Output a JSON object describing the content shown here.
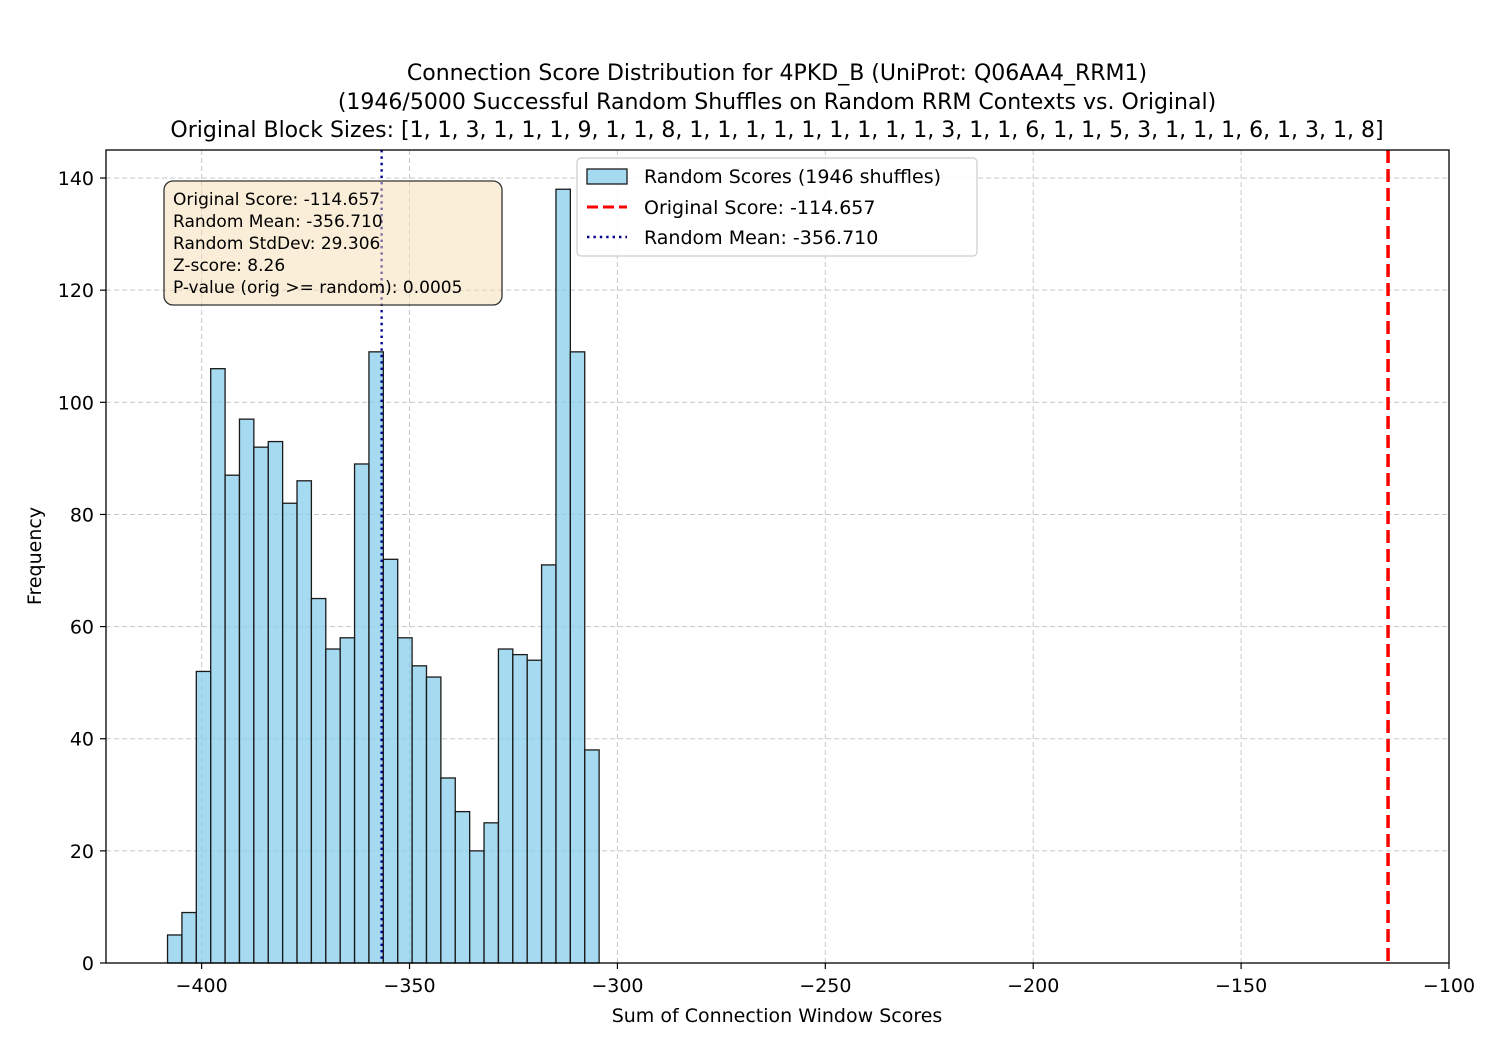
{
  "chart_data": {
    "type": "bar",
    "title_lines": [
      "Connection Score Distribution for 4PKD_B (UniProt: Q06AA4_RRM1)",
      "(1946/5000 Successful Random Shuffles on Random RRM Contexts vs. Original)",
      "Original Block Sizes: [1, 1, 3, 1, 1, 1, 9, 1, 1, 8, 1, 1, 1, 1, 1, 1, 1, 1, 1, 3, 1, 1, 6, 1, 1, 5, 3, 1, 1, 1, 6, 1, 3, 1, 8]"
    ],
    "xlabel": "Sum of Connection Window Scores",
    "ylabel": "Frequency",
    "xlim": [
      -423,
      -100
    ],
    "ylim": [
      0,
      145
    ],
    "xticks": [
      -400,
      -350,
      -300,
      -250,
      -200,
      -150,
      -100
    ],
    "xtick_labels": [
      "−400",
      "−350",
      "−300",
      "−250",
      "−200",
      "−150",
      "−100"
    ],
    "yticks": [
      0,
      20,
      40,
      60,
      80,
      100,
      120,
      140
    ],
    "ytick_labels": [
      "0",
      "20",
      "40",
      "60",
      "80",
      "100",
      "120",
      "140"
    ],
    "grid": true,
    "legend_position": "upper-center",
    "bin_width": 3.46,
    "bin_starts": [
      -408.2,
      -404.74,
      -401.28,
      -397.82,
      -394.36,
      -390.9,
      -387.44,
      -383.98,
      -380.52,
      -377.06,
      -373.6,
      -370.14,
      -366.68,
      -363.22,
      -359.76,
      -356.3,
      -352.84,
      -349.38,
      -345.92,
      -342.46,
      -339.0,
      -335.54,
      -332.08,
      -328.62,
      -325.16,
      -321.7,
      -318.24,
      -314.78,
      -311.32,
      -307.86
    ],
    "counts": [
      5,
      9,
      52,
      106,
      87,
      97,
      92,
      93,
      82,
      86,
      65,
      56,
      58,
      89,
      109,
      72,
      58,
      53,
      51,
      33,
      27,
      20,
      25,
      56,
      55,
      54,
      71,
      138,
      109,
      38
    ],
    "original_score": -114.657,
    "random_mean": -356.71,
    "colors": {
      "bar_fill": "#87ceeb",
      "bar_edge": "#1a1a1a",
      "original_line": "#ff0000",
      "mean_line": "#00008b",
      "grid": "#b0b0b0",
      "stats_box_fill": "#f5deb3",
      "stats_box_edge": "#333333"
    },
    "legend": {
      "hist_label": "Random Scores (1946 shuffles)",
      "original_label": "Original Score: -114.657",
      "mean_label": "Random Mean: -356.710"
    },
    "stats_box": [
      "Original Score: -114.657",
      "Random Mean: -356.710",
      "Random StdDev: 29.306",
      "Z-score: 8.26",
      "P-value (orig >= random): 0.0005"
    ]
  }
}
